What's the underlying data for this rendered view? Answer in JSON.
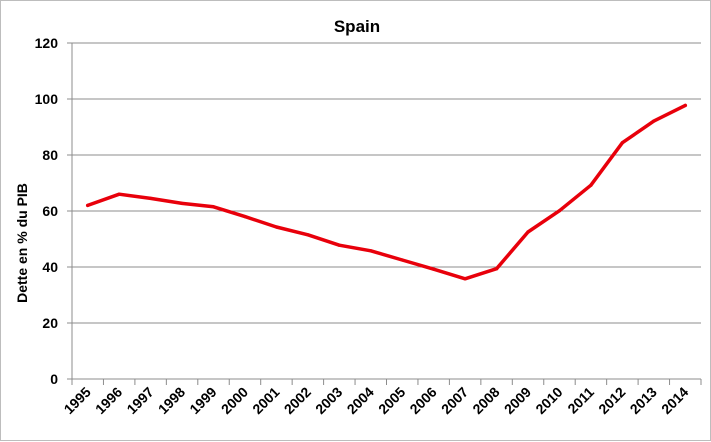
{
  "chart_data": {
    "type": "line",
    "title": "Spain",
    "xlabel": "",
    "ylabel": "Dette en % du PIB",
    "ylim": [
      0,
      120
    ],
    "yticks": [
      0,
      20,
      40,
      60,
      80,
      100,
      120
    ],
    "grid": true,
    "legend": "none",
    "categories": [
      "1995",
      "1996",
      "1997",
      "1998",
      "1999",
      "2000",
      "2001",
      "2002",
      "2003",
      "2004",
      "2005",
      "2006",
      "2007",
      "2008",
      "2009",
      "2010",
      "2011",
      "2012",
      "2013",
      "2014"
    ],
    "series": [
      {
        "values": [
          62,
          66,
          64.5,
          62.7,
          61.5,
          58,
          54.3,
          51.5,
          47.8,
          45.8,
          42.5,
          39.2,
          35.8,
          39.4,
          52.5,
          60.1,
          69.2,
          84.4,
          92.1,
          97.7
        ],
        "color": "#e8000b"
      }
    ]
  }
}
